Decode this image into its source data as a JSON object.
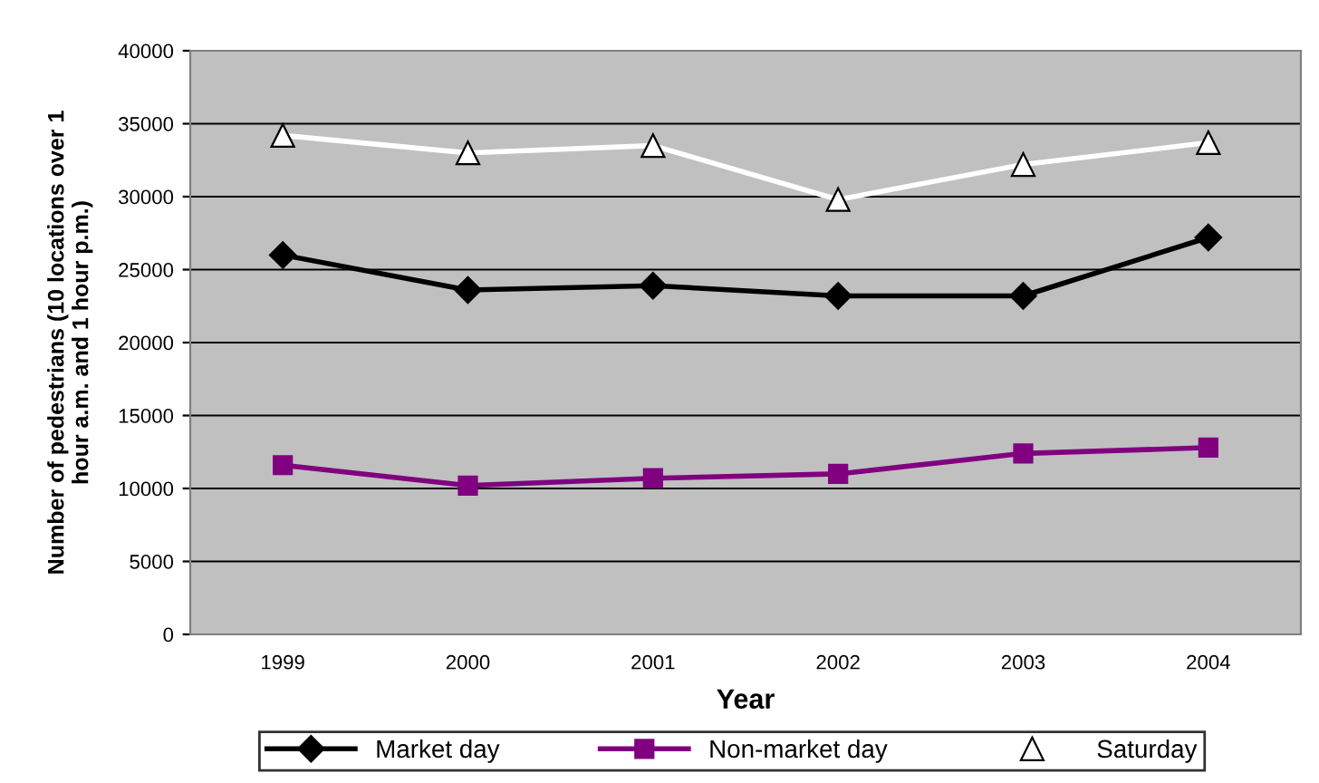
{
  "chart_data": {
    "type": "line",
    "xlabel": "Year",
    "ylabel": "Number of pedestrians (10 locations over 1\nhour a.m. and 1 hour p.m.)",
    "categories": [
      "1999",
      "2000",
      "2001",
      "2002",
      "2003",
      "2004"
    ],
    "series": [
      {
        "name": "Market day",
        "color": "#000000",
        "marker": "diamond",
        "values": [
          26000,
          23600,
          23900,
          23200,
          23200,
          27200
        ]
      },
      {
        "name": "Non-market day",
        "color": "#800080",
        "marker": "square",
        "values": [
          11600,
          10200,
          10700,
          11000,
          12400,
          12800
        ]
      },
      {
        "name": "Saturday",
        "color": "#ffffff",
        "marker": "triangle",
        "values": [
          34200,
          33000,
          33500,
          29800,
          32200,
          33700
        ]
      }
    ],
    "ylim": [
      0,
      40000
    ],
    "yticks": [
      0,
      5000,
      10000,
      15000,
      20000,
      25000,
      30000,
      35000,
      40000
    ],
    "grid": "y",
    "legend": "bottom",
    "line_style": "solid"
  }
}
